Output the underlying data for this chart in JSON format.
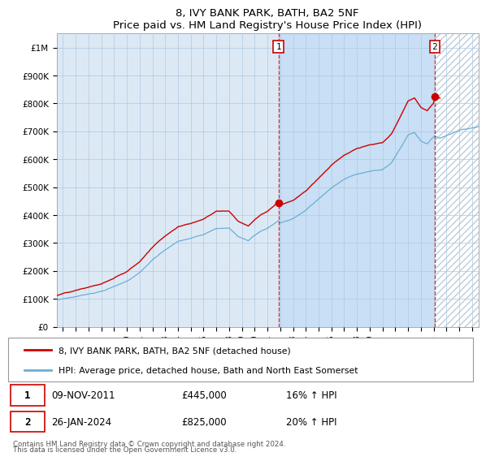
{
  "title": "8, IVY BANK PARK, BATH, BA2 5NF",
  "subtitle": "Price paid vs. HM Land Registry's House Price Index (HPI)",
  "legend_line1": "8, IVY BANK PARK, BATH, BA2 5NF (detached house)",
  "legend_line2": "HPI: Average price, detached house, Bath and North East Somerset",
  "transaction1_date": "09-NOV-2011",
  "transaction1_price": "£445,000",
  "transaction1_hpi": "16% ↑ HPI",
  "transaction1_year": 2011.86,
  "transaction2_date": "26-JAN-2024",
  "transaction2_price": "£825,000",
  "transaction2_hpi": "20% ↑ HPI",
  "transaction2_year": 2024.07,
  "hpi_color": "#6baed6",
  "price_color": "#cc0000",
  "background_color": "#ffffff",
  "plot_bg_color": "#dce9f5",
  "shade_color": "#c8dcf0",
  "grid_color": "#b0c8e0",
  "footer": "Contains HM Land Registry data © Crown copyright and database right 2024.\nThis data is licensed under the Open Government Licence v3.0.",
  "ylim": [
    0,
    1050000
  ],
  "xlim_start": 1994.5,
  "xlim_end": 2027.5,
  "yticks": [
    0,
    100000,
    200000,
    300000,
    400000,
    500000,
    600000,
    700000,
    800000,
    900000,
    1000000
  ],
  "ytick_labels": [
    "£0",
    "£100K",
    "£200K",
    "£300K",
    "£400K",
    "£500K",
    "£600K",
    "£700K",
    "£800K",
    "£900K",
    "£1M"
  ],
  "xticks": [
    1995,
    1996,
    1997,
    1998,
    1999,
    2000,
    2001,
    2002,
    2003,
    2004,
    2005,
    2006,
    2007,
    2008,
    2009,
    2010,
    2011,
    2012,
    2013,
    2014,
    2015,
    2016,
    2017,
    2018,
    2019,
    2020,
    2021,
    2022,
    2023,
    2024,
    2025,
    2026,
    2027
  ]
}
